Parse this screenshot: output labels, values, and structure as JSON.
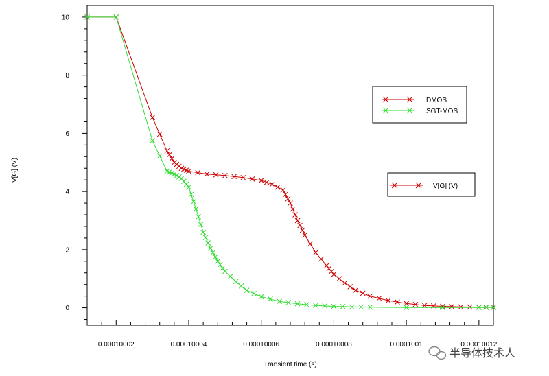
{
  "chart_data": {
    "type": "line",
    "title": "",
    "xlabel": "Transient time (s)",
    "ylabel": "V[G] (V)",
    "xlim": [
      0.000100012,
      0.000100124
    ],
    "ylim": [
      -0.6,
      10.4
    ],
    "x_ticks": [
      {
        "value": 0.00010002,
        "label": "0.00010002"
      },
      {
        "value": 0.00010004,
        "label": "0.00010004"
      },
      {
        "value": 0.00010006,
        "label": "0.00010006"
      },
      {
        "value": 0.00010008,
        "label": "0.00010008"
      },
      {
        "value": 0.0001001,
        "label": "0.0001001"
      },
      {
        "value": 0.00010012,
        "label": "0.00010012"
      }
    ],
    "y_ticks": [
      {
        "value": 0,
        "label": "0"
      },
      {
        "value": 2,
        "label": "2"
      },
      {
        "value": 4,
        "label": "4"
      },
      {
        "value": 6,
        "label": "6"
      },
      {
        "value": 8,
        "label": "8"
      },
      {
        "value": 10,
        "label": "10"
      }
    ],
    "grid": false,
    "legends": [
      {
        "entries": [
          {
            "label": "DMOS",
            "color": "#cc0000"
          },
          {
            "label": "SGT-MOS",
            "color": "#33dd33"
          }
        ],
        "placement": "right-upper"
      },
      {
        "entries": [
          {
            "label": "V[G] (V)",
            "color": "#cc0000"
          }
        ],
        "placement": "right-middle"
      }
    ],
    "series": [
      {
        "name": "DMOS",
        "color": "#cc0000",
        "marker": "x",
        "x": [
          0.000100012,
          0.00010002,
          0.00010003,
          0.000100034,
          0.000100036,
          0.000100038,
          0.00010004,
          0.000100045,
          0.00010005,
          0.000100055,
          0.00010006,
          0.000100063,
          0.000100066,
          0.000100068,
          0.00010007,
          0.000100072,
          0.000100075,
          0.000100078,
          0.00010008,
          0.000100083,
          0.000100086,
          0.00010009,
          0.000100095,
          0.0001001,
          0.000100105,
          0.00010011,
          0.000100115,
          0.00010012,
          0.000100124
        ],
        "y": [
          10.0,
          10.0,
          6.55,
          5.4,
          5.0,
          4.8,
          4.7,
          4.6,
          4.55,
          4.48,
          4.38,
          4.25,
          4.05,
          3.6,
          3.0,
          2.5,
          1.9,
          1.45,
          1.15,
          0.85,
          0.6,
          0.4,
          0.25,
          0.15,
          0.08,
          0.05,
          0.03,
          0.02,
          0.02
        ]
      },
      {
        "name": "SGT-MOS",
        "color": "#33dd33",
        "marker": "x",
        "x": [
          0.000100012,
          0.00010002,
          0.00010003,
          0.000100034,
          0.000100036,
          0.000100038,
          0.00010004,
          0.000100042,
          0.000100044,
          0.000100046,
          0.000100048,
          0.00010005,
          0.000100053,
          0.000100056,
          0.00010006,
          0.000100065,
          0.00010007,
          0.000100075,
          0.00010008,
          0.000100085,
          0.00010009,
          0.0001001,
          0.00010011,
          0.00010012,
          0.000100124
        ],
        "y": [
          10.0,
          10.0,
          5.75,
          4.7,
          4.6,
          4.45,
          4.15,
          3.4,
          2.6,
          2.05,
          1.6,
          1.25,
          0.9,
          0.6,
          0.38,
          0.22,
          0.14,
          0.08,
          0.05,
          0.03,
          0.02,
          0.01,
          0.01,
          0.01,
          0.01
        ]
      }
    ]
  },
  "watermark": {
    "text": "半导体技术人",
    "icon": "wechat-icon"
  }
}
